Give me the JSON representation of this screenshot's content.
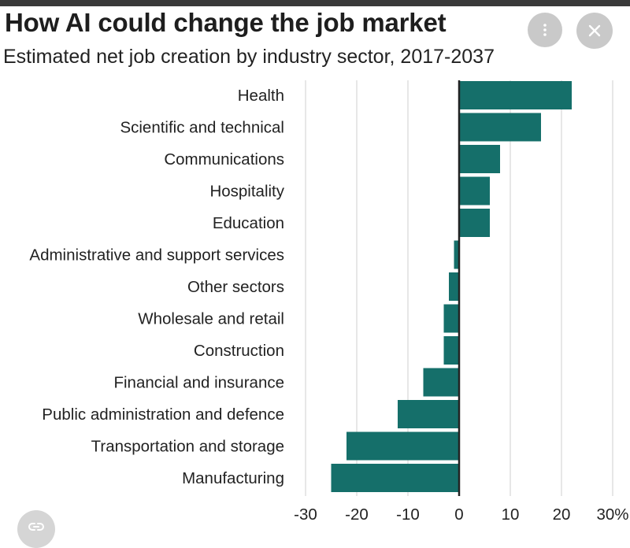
{
  "chart_data": {
    "type": "bar",
    "orientation": "horizontal",
    "title": "How AI could change the job market",
    "subtitle": "Estimated net job creation by industry sector, 2017-2037",
    "categories": [
      "Health",
      "Scientific and technical",
      "Communications",
      "Hospitality",
      "Education",
      "Administrative and support services",
      "Other sectors",
      "Wholesale and retail",
      "Construction",
      "Financial and insurance",
      "Public administration and defence",
      "Transportation and storage",
      "Manufacturing"
    ],
    "values": [
      22,
      16,
      8,
      6,
      6,
      -1,
      -2,
      -3,
      -3,
      -7,
      -12,
      -22,
      -25
    ],
    "xlim": [
      -30,
      30
    ],
    "xticks": [
      -30,
      -20,
      -10,
      0,
      10,
      20,
      30
    ],
    "xtick_labels": [
      "-30",
      "-20",
      "-10",
      "0",
      "10",
      "20",
      "30%"
    ],
    "xlabel": "",
    "ylabel": "",
    "grid": true,
    "bar_color": "#156f6a"
  },
  "controls": {
    "more_icon": "more-vert-icon",
    "close_icon": "close-icon",
    "link_icon": "link-icon"
  }
}
